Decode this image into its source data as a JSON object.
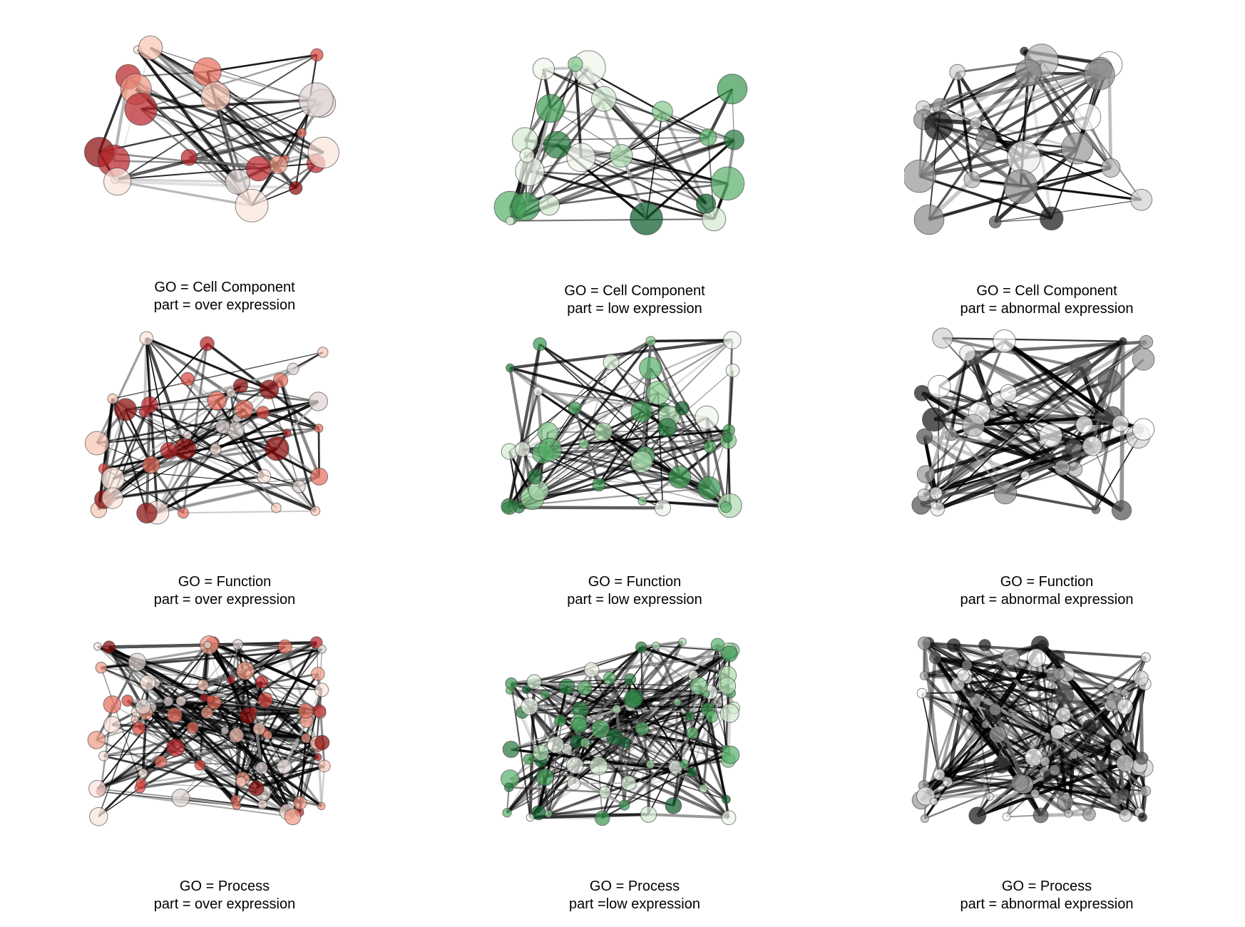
{
  "panels": [
    {
      "go": "GO = Cell Component",
      "part": "part = over expression",
      "palette": "red",
      "nodes": 24,
      "seed": 11
    },
    {
      "go": "GO = Cell Component",
      "part": "part = low expression",
      "palette": "green",
      "nodes": 24,
      "seed": 12
    },
    {
      "go": "GO = Cell Component",
      "part": "part = abnormal expression",
      "palette": "gray",
      "nodes": 24,
      "seed": 13
    },
    {
      "go": "GO = Function",
      "part": "part = over expression",
      "palette": "red",
      "nodes": 42,
      "seed": 21
    },
    {
      "go": "GO = Function",
      "part": "part = low expression",
      "palette": "green",
      "nodes": 42,
      "seed": 22
    },
    {
      "go": "GO = Function",
      "part": "part = abnormal expression",
      "palette": "gray",
      "nodes": 42,
      "seed": 23
    },
    {
      "go": "GO = Process",
      "part": "part = over expression",
      "palette": "red",
      "nodes": 80,
      "seed": 31
    },
    {
      "go": "GO = Process",
      "part": "part =low expression",
      "palette": "green",
      "nodes": 80,
      "seed": 32
    },
    {
      "go": "GO = Process",
      "part": "part = abnormal expression",
      "palette": "gray",
      "nodes": 80,
      "seed": 33
    }
  ],
  "palettes": {
    "red": [
      "#8b0c0c",
      "#b8262b",
      "#d9463f",
      "#e8705f",
      "#f19b86",
      "#f8c6b6",
      "#fbe5dc",
      "#e0d6d3"
    ],
    "green": [
      "#0f5d2c",
      "#2a7a40",
      "#3f9a55",
      "#5cb36d",
      "#85c98f",
      "#aedcb0",
      "#d4ecd2",
      "#eef7ec"
    ],
    "gray": [
      "#1a1a1a",
      "#555555",
      "#8c8c8c",
      "#9a9a9a",
      "#b5b5b5",
      "#d2d2d2",
      "#ececec",
      "#ffffff"
    ]
  }
}
